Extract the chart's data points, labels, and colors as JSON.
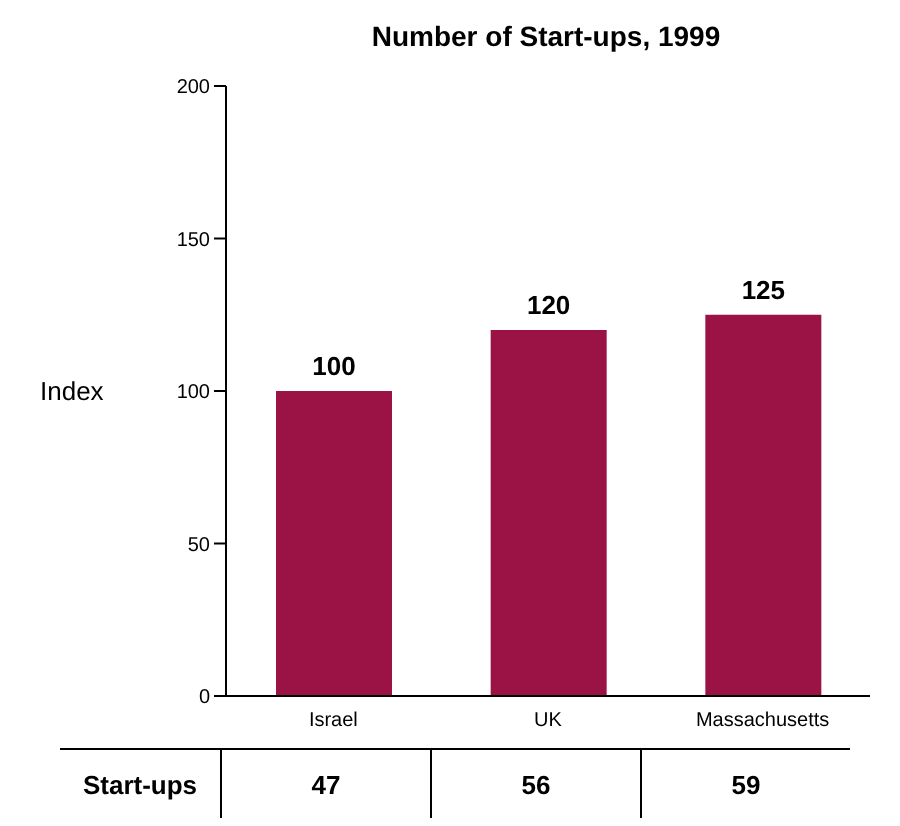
{
  "chart_data": {
    "type": "bar",
    "title": "Number of Start-ups, 1999",
    "ylabel": "Index",
    "categories": [
      "Israel",
      "UK",
      "Massachusetts"
    ],
    "values": [
      100,
      120,
      125
    ],
    "color": "#9b1244",
    "ylim": [
      0,
      200
    ],
    "yticks": [
      0,
      50,
      100,
      150,
      200
    ],
    "grid": false,
    "data_labels": true,
    "annotations": [
      "Start-ups",
      "47",
      "56",
      "59"
    ]
  }
}
